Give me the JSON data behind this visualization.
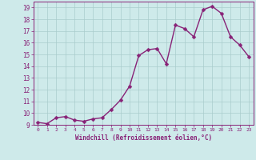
{
  "x": [
    0,
    1,
    2,
    3,
    4,
    5,
    6,
    7,
    8,
    9,
    10,
    11,
    12,
    13,
    14,
    15,
    16,
    17,
    18,
    19,
    20,
    21,
    22,
    23
  ],
  "y": [
    9.2,
    9.1,
    9.6,
    9.7,
    9.4,
    9.3,
    9.5,
    9.6,
    10.3,
    11.1,
    12.3,
    14.9,
    15.4,
    15.5,
    14.2,
    17.5,
    17.2,
    16.5,
    18.8,
    19.1,
    18.5,
    16.5,
    15.8,
    14.8
  ],
  "line_color": "#882277",
  "marker": "D",
  "markersize": 2.5,
  "linewidth": 1.0,
  "background_color": "#ceeaea",
  "grid_color": "#aacccc",
  "tick_color": "#882277",
  "label_color": "#882277",
  "xlabel": "Windchill (Refroidissement éolien,°C)",
  "ylim": [
    9,
    19.5
  ],
  "xlim": [
    -0.5,
    23.5
  ],
  "yticks": [
    9,
    10,
    11,
    12,
    13,
    14,
    15,
    16,
    17,
    18,
    19
  ],
  "xticks": [
    0,
    1,
    2,
    3,
    4,
    5,
    6,
    7,
    8,
    9,
    10,
    11,
    12,
    13,
    14,
    15,
    16,
    17,
    18,
    19,
    20,
    21,
    22,
    23
  ],
  "font_family": "monospace"
}
